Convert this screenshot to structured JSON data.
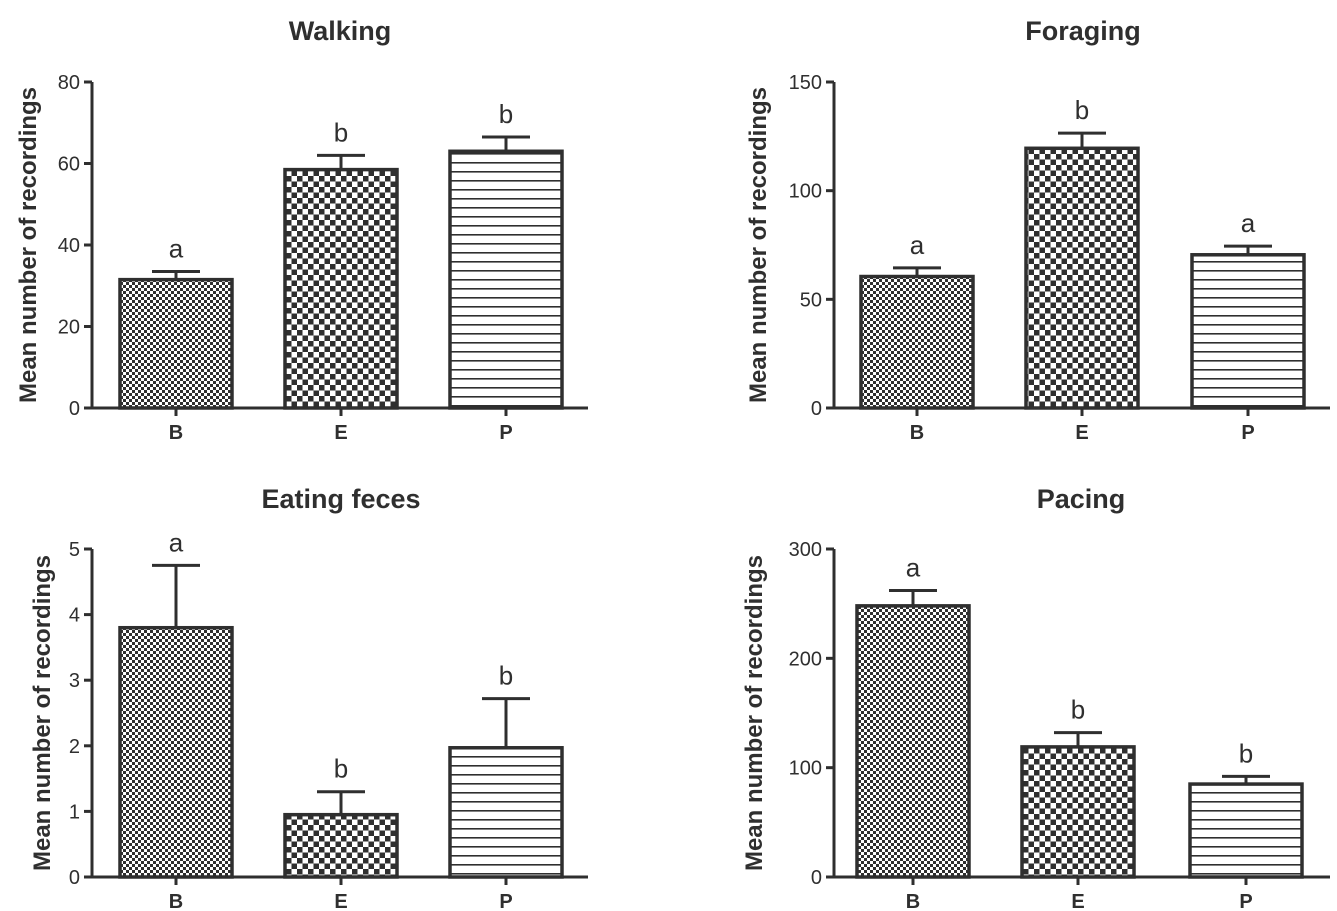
{
  "colors": {
    "ink": "#2f2f2f",
    "background": "#ffffff"
  },
  "chart_data": [
    {
      "type": "bar",
      "title": "Walking",
      "ylabel": "Mean number of recordings",
      "xlabel": "",
      "categories": [
        "B",
        "E",
        "P"
      ],
      "values": [
        31.5,
        58.5,
        63
      ],
      "errors": [
        2,
        3.5,
        3.5
      ],
      "significance": [
        "a",
        "b",
        "b"
      ],
      "patterns": [
        "fine-check",
        "coarse-check",
        "horizontal-lines"
      ],
      "ylim": [
        0,
        80
      ],
      "yticks": [
        "0",
        "20",
        "40",
        "60",
        "80"
      ]
    },
    {
      "type": "bar",
      "title": "Foraging",
      "ylabel": "Mean number of recordings",
      "xlabel": "",
      "categories": [
        "B",
        "E",
        "P"
      ],
      "values": [
        60.5,
        119.5,
        70.5
      ],
      "errors": [
        4,
        7,
        4
      ],
      "significance": [
        "a",
        "b",
        "a"
      ],
      "patterns": [
        "fine-check",
        "coarse-check",
        "horizontal-lines"
      ],
      "ylim": [
        0,
        150
      ],
      "yticks": [
        "0",
        "50",
        "100",
        "150"
      ]
    },
    {
      "type": "bar",
      "title": "Eating feces",
      "ylabel": "Mean number of recordings",
      "xlabel": "",
      "categories": [
        "B",
        "E",
        "P"
      ],
      "values": [
        3.8,
        0.95,
        1.97
      ],
      "errors": [
        0.95,
        0.35,
        0.75
      ],
      "significance": [
        "a",
        "b",
        "b"
      ],
      "patterns": [
        "fine-check",
        "coarse-check",
        "horizontal-lines"
      ],
      "ylim": [
        0,
        5
      ],
      "yticks": [
        "0",
        "1",
        "2",
        "3",
        "4",
        "5"
      ]
    },
    {
      "type": "bar",
      "title": "Pacing",
      "ylabel": "Mean number of recordings",
      "xlabel": "",
      "categories": [
        "B",
        "E",
        "P"
      ],
      "values": [
        248,
        119,
        85
      ],
      "errors": [
        14,
        13,
        7
      ],
      "significance": [
        "a",
        "b",
        "b"
      ],
      "patterns": [
        "fine-check",
        "coarse-check",
        "horizontal-lines"
      ],
      "ylim": [
        0,
        300
      ],
      "yticks": [
        "0",
        "100",
        "200",
        "300"
      ]
    }
  ]
}
